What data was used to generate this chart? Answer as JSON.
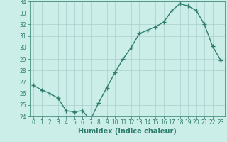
{
  "x": [
    0,
    1,
    2,
    3,
    4,
    5,
    6,
    7,
    8,
    9,
    10,
    11,
    12,
    13,
    14,
    15,
    16,
    17,
    18,
    19,
    20,
    21,
    22,
    23
  ],
  "y": [
    26.7,
    26.3,
    26.0,
    25.6,
    24.5,
    24.4,
    24.5,
    23.7,
    25.2,
    26.5,
    27.8,
    29.0,
    30.0,
    31.2,
    31.5,
    31.8,
    32.2,
    33.2,
    33.8,
    33.6,
    33.2,
    32.0,
    30.1,
    28.9
  ],
  "line_color": "#2e7d6e",
  "marker": "+",
  "marker_size": 4,
  "marker_lw": 1.0,
  "line_width": 1.0,
  "background_color": "#cceee8",
  "grid_color": "#aacccc",
  "xlabel": "Humidex (Indice chaleur)",
  "ylim": [
    24,
    34
  ],
  "xlim": [
    -0.5,
    23.5
  ],
  "yticks": [
    24,
    25,
    26,
    27,
    28,
    29,
    30,
    31,
    32,
    33,
    34
  ],
  "xticks": [
    0,
    1,
    2,
    3,
    4,
    5,
    6,
    7,
    8,
    9,
    10,
    11,
    12,
    13,
    14,
    15,
    16,
    17,
    18,
    19,
    20,
    21,
    22,
    23
  ],
  "tick_color": "#2e7d6e",
  "label_color": "#2e7d6e",
  "xlabel_fontsize": 7,
  "tick_labelsize": 5.5
}
